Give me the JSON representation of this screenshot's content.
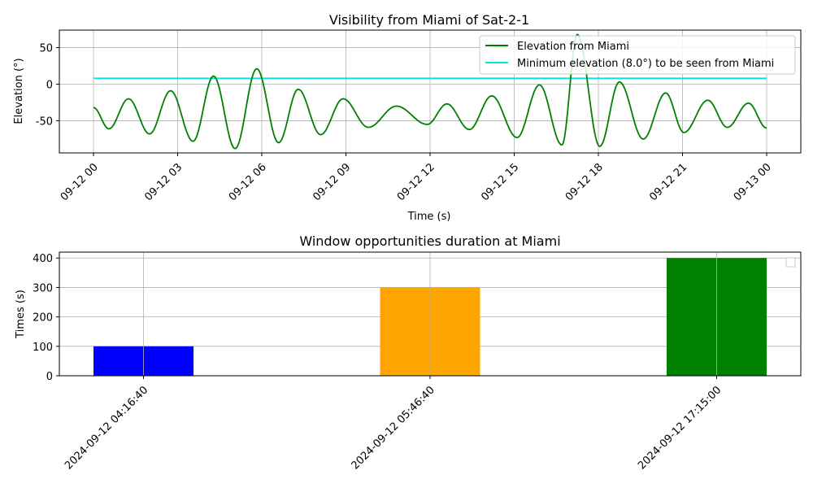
{
  "chart_data": [
    {
      "type": "line",
      "title": "Visibility from Miami of Sat-2-1",
      "xlabel": "Time (s)",
      "ylabel": "Elevation (°)",
      "x_range_hours": [
        0,
        24
      ],
      "ylim": [
        -94,
        74
      ],
      "yticks": [
        -50,
        0,
        50
      ],
      "xticks": [
        {
          "hour": 0,
          "label": "09-12 00"
        },
        {
          "hour": 3,
          "label": "09-12 03"
        },
        {
          "hour": 6,
          "label": "09-12 06"
        },
        {
          "hour": 9,
          "label": "09-12 09"
        },
        {
          "hour": 12,
          "label": "09-12 12"
        },
        {
          "hour": 15,
          "label": "09-12 15"
        },
        {
          "hour": 18,
          "label": "09-12 18"
        },
        {
          "hour": 21,
          "label": "09-12 21"
        },
        {
          "hour": 24,
          "label": "09-13 00"
        }
      ],
      "grid": true,
      "legend_position": "upper right",
      "series": [
        {
          "name": "Elevation from Miami",
          "color": "#008000",
          "extrema": [
            [
              0,
              -32
            ],
            [
              0.55,
              -61
            ],
            [
              1.25,
              -20
            ],
            [
              2.0,
              -68
            ],
            [
              2.75,
              -9
            ],
            [
              3.55,
              -78
            ],
            [
              4.28,
              11
            ],
            [
              5.05,
              -88
            ],
            [
              5.82,
              21
            ],
            [
              6.6,
              -80
            ],
            [
              7.3,
              -7
            ],
            [
              8.1,
              -69
            ],
            [
              8.9,
              -20
            ],
            [
              9.8,
              -59
            ],
            [
              10.8,
              -30
            ],
            [
              11.9,
              -55
            ],
            [
              12.6,
              -27
            ],
            [
              13.4,
              -62
            ],
            [
              14.2,
              -16
            ],
            [
              15.1,
              -73
            ],
            [
              15.9,
              -1
            ],
            [
              16.7,
              -83
            ],
            [
              17.25,
              68
            ],
            [
              18.05,
              -85
            ],
            [
              18.75,
              3
            ],
            [
              19.6,
              -75
            ],
            [
              20.4,
              -12
            ],
            [
              21.05,
              -66
            ],
            [
              21.9,
              -22
            ],
            [
              22.6,
              -59
            ],
            [
              23.35,
              -26
            ],
            [
              24.0,
              -60
            ]
          ]
        },
        {
          "name": "Minimum elevation (8.0°) to be seen from Miami",
          "color": "#00e5e5",
          "value": 8.0
        }
      ]
    },
    {
      "type": "bar",
      "title": "Window opportunities duration at Miami",
      "xlabel": "",
      "ylabel": "Times (s)",
      "ylim": [
        0,
        420
      ],
      "yticks": [
        0,
        100,
        200,
        300,
        400
      ],
      "grid": true,
      "legend_position": "upper right",
      "categories": [
        "2024-09-12 04:16:40",
        "2024-09-12 05:46:40",
        "2024-09-12 17:15:00"
      ],
      "values": [
        100,
        300,
        400
      ],
      "colors": [
        "#0000ff",
        "#ffa500",
        "#008000"
      ]
    }
  ]
}
